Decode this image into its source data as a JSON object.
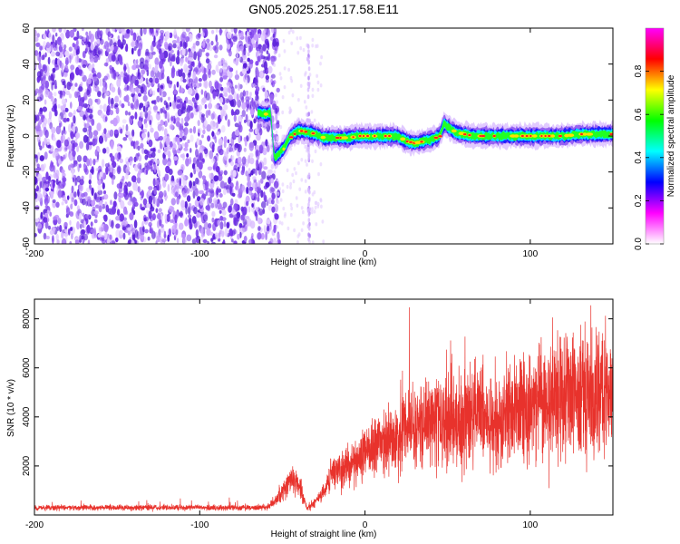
{
  "figure": {
    "title": "GN05.2025.251.17.58.E11"
  },
  "chart_data": [
    {
      "type": "heatmap",
      "xlabel": "Height of straight line (km)",
      "ylabel": "Frequency (Hz)",
      "xlim": [
        -200,
        150
      ],
      "ylim": [
        -60,
        60
      ],
      "xticks": [
        -200,
        -100,
        0,
        100
      ],
      "yticks": [
        -60,
        -40,
        -20,
        0,
        20,
        40,
        60
      ],
      "colorbar": {
        "label": "Normalized spectral amplitude",
        "range": [
          0,
          1
        ],
        "ticks": [
          0.0,
          0.2,
          0.4,
          0.6,
          0.8
        ],
        "colormap": [
          "#ffffff",
          "#ff00ff",
          "#0000ff",
          "#00ffff",
          "#00ff00",
          "#ffff00",
          "#ff0000",
          "#ff00ff"
        ]
      },
      "noise_region_x": [
        -200,
        -55
      ],
      "ridge": {
        "x": [
          -65,
          -60,
          -57,
          -55,
          -52,
          -48,
          -45,
          -40,
          -35,
          -30,
          -25,
          -20,
          -15,
          -10,
          -5,
          0,
          5,
          10,
          15,
          20,
          25,
          30,
          35,
          40,
          45,
          48,
          50,
          55,
          60,
          65,
          70,
          75,
          80,
          90,
          100,
          110,
          120,
          130,
          140,
          150
        ],
        "y": [
          13,
          12,
          13,
          -12,
          -10,
          -5,
          0,
          3,
          2,
          1,
          -1,
          -1,
          -1,
          -1,
          0,
          0,
          0,
          0,
          0,
          0,
          -3,
          -4,
          -3,
          -2,
          0,
          7,
          5,
          2,
          1,
          0,
          0,
          0,
          0,
          0,
          0,
          0,
          0,
          1,
          1,
          1
        ]
      },
      "spike": {
        "x": -34,
        "ylim": [
          -60,
          60
        ]
      }
    },
    {
      "type": "line",
      "xlabel": "Height of straight line (km)",
      "ylabel": "SNR (10 * v/v)",
      "xlim": [
        -200,
        150
      ],
      "ylim": [
        0,
        8800
      ],
      "xticks": [
        -200,
        -100,
        0,
        100
      ],
      "yticks": [
        2000,
        4000,
        6000,
        8000
      ],
      "series": [
        {
          "color": "#e8322c",
          "envelope_x": [
            -200,
            -150,
            -100,
            -60,
            -55,
            -50,
            -45,
            -40,
            -35,
            -30,
            -25,
            -20,
            -10,
            0,
            10,
            20,
            30,
            40,
            50,
            60,
            70,
            80,
            90,
            100,
            110,
            120,
            130,
            140,
            150
          ],
          "envelope_y": [
            300,
            300,
            300,
            300,
            500,
            1000,
            1500,
            1200,
            300,
            500,
            1000,
            1600,
            2000,
            2600,
            3000,
            3300,
            3600,
            3800,
            4000,
            3800,
            4000,
            3800,
            4200,
            4500,
            4700,
            4900,
            5000,
            5100,
            5200
          ]
        }
      ]
    }
  ]
}
